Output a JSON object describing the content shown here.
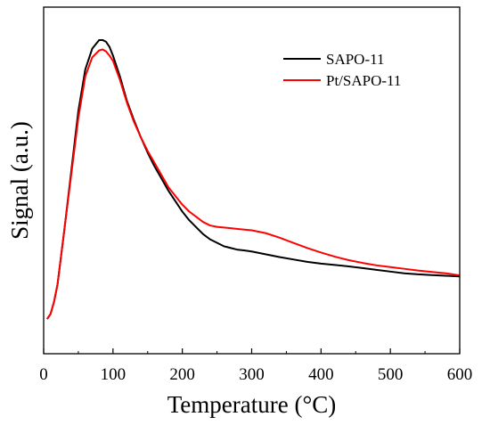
{
  "chart_data": {
    "type": "line",
    "xlabel": "Temperature (°C)",
    "ylabel": "Signal (a.u.)",
    "xlim": [
      0,
      600
    ],
    "ylim": [
      0,
      1
    ],
    "x_ticks": [
      0,
      100,
      200,
      300,
      400,
      500,
      600
    ],
    "y_ticks": [],
    "grid": false,
    "legend_position": "top-right",
    "series": [
      {
        "name": "SAPO-11",
        "color": "#000000",
        "x": [
          5,
          10,
          15,
          20,
          30,
          40,
          50,
          60,
          70,
          80,
          85,
          90,
          95,
          100,
          110,
          120,
          130,
          140,
          150,
          160,
          170,
          180,
          190,
          200,
          210,
          220,
          230,
          240,
          250,
          260,
          270,
          280,
          290,
          300,
          320,
          340,
          360,
          380,
          400,
          420,
          440,
          460,
          480,
          500,
          520,
          540,
          560,
          580,
          600
        ],
        "values": [
          0.1,
          0.115,
          0.15,
          0.2,
          0.36,
          0.53,
          0.7,
          0.82,
          0.88,
          0.905,
          0.905,
          0.9,
          0.885,
          0.86,
          0.8,
          0.73,
          0.675,
          0.625,
          0.58,
          0.54,
          0.505,
          0.47,
          0.44,
          0.41,
          0.385,
          0.365,
          0.345,
          0.33,
          0.32,
          0.31,
          0.305,
          0.3,
          0.298,
          0.295,
          0.287,
          0.279,
          0.272,
          0.265,
          0.26,
          0.256,
          0.252,
          0.247,
          0.242,
          0.237,
          0.232,
          0.229,
          0.227,
          0.225,
          0.223
        ]
      },
      {
        "name": "Pt/SAPO-11",
        "color": "#ff0000",
        "x": [
          5,
          10,
          15,
          20,
          30,
          40,
          50,
          60,
          70,
          80,
          85,
          90,
          95,
          100,
          110,
          120,
          130,
          140,
          150,
          160,
          170,
          180,
          190,
          200,
          210,
          220,
          230,
          240,
          250,
          260,
          270,
          280,
          290,
          300,
          320,
          340,
          360,
          380,
          400,
          420,
          440,
          460,
          480,
          500,
          520,
          540,
          560,
          580,
          600
        ],
        "values": [
          0.1,
          0.115,
          0.15,
          0.2,
          0.36,
          0.52,
          0.68,
          0.8,
          0.855,
          0.875,
          0.878,
          0.872,
          0.86,
          0.845,
          0.79,
          0.725,
          0.67,
          0.625,
          0.585,
          0.55,
          0.515,
          0.48,
          0.455,
          0.43,
          0.41,
          0.395,
          0.38,
          0.37,
          0.366,
          0.364,
          0.362,
          0.36,
          0.358,
          0.356,
          0.348,
          0.335,
          0.32,
          0.305,
          0.292,
          0.28,
          0.27,
          0.262,
          0.255,
          0.25,
          0.245,
          0.24,
          0.236,
          0.232,
          0.226
        ]
      }
    ]
  }
}
